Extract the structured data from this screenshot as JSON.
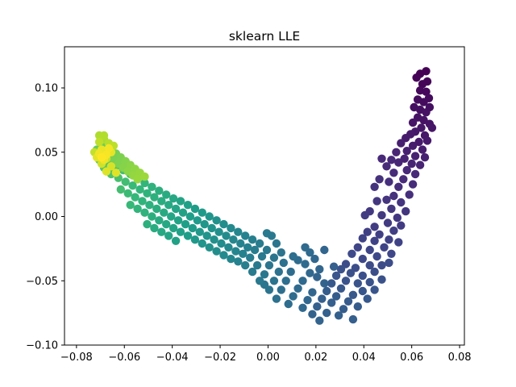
{
  "chart_data": {
    "type": "scatter",
    "title": "sklearn LLE",
    "xlabel": "",
    "ylabel": "",
    "xlim": [
      -0.085,
      0.082
    ],
    "ylim": [
      -0.1,
      0.132
    ],
    "x_ticks": [
      -0.08,
      -0.06,
      -0.04,
      -0.02,
      0.0,
      0.02,
      0.04,
      0.06,
      0.08
    ],
    "x_tick_labels": [
      "−0.08",
      "−0.06",
      "−0.04",
      "−0.02",
      "0.00",
      "0.02",
      "0.04",
      "0.06",
      "0.08"
    ],
    "y_ticks": [
      -0.1,
      -0.05,
      0.0,
      0.05,
      0.1
    ],
    "y_tick_labels": [
      "−0.10",
      "−0.05",
      "0.00",
      "0.05",
      "0.10"
    ],
    "grid": false,
    "legend": "none",
    "colormap": "viridis",
    "color_value_range": [
      0,
      1
    ],
    "points": [
      [
        0.0635,
        0.111,
        0.0
      ],
      [
        0.066,
        0.113,
        0.0
      ],
      [
        0.062,
        0.108,
        0.005
      ],
      [
        0.0645,
        0.103,
        0.01
      ],
      [
        0.0665,
        0.105,
        0.01
      ],
      [
        0.0635,
        0.098,
        0.02
      ],
      [
        0.066,
        0.097,
        0.02
      ],
      [
        0.0625,
        0.091,
        0.03
      ],
      [
        0.065,
        0.089,
        0.03
      ],
      [
        0.0672,
        0.092,
        0.03
      ],
      [
        0.061,
        0.085,
        0.04
      ],
      [
        0.0635,
        0.083,
        0.04
      ],
      [
        0.066,
        0.081,
        0.045
      ],
      [
        0.0675,
        0.085,
        0.04
      ],
      [
        0.0625,
        0.077,
        0.05
      ],
      [
        0.065,
        0.075,
        0.05
      ],
      [
        0.0675,
        0.072,
        0.055
      ],
      [
        0.0605,
        0.073,
        0.055
      ],
      [
        0.064,
        0.069,
        0.06
      ],
      [
        0.0685,
        0.069,
        0.06
      ],
      [
        0.0615,
        0.066,
        0.065
      ],
      [
        0.0655,
        0.063,
        0.065
      ],
      [
        0.0595,
        0.064,
        0.07
      ],
      [
        0.063,
        0.058,
        0.07
      ],
      [
        0.0665,
        0.059,
        0.07
      ],
      [
        0.0575,
        0.061,
        0.075
      ],
      [
        0.0605,
        0.055,
        0.08
      ],
      [
        0.0645,
        0.052,
        0.08
      ],
      [
        0.058,
        0.051,
        0.085
      ],
      [
        0.0615,
        0.047,
        0.09
      ],
      [
        0.0655,
        0.046,
        0.09
      ],
      [
        0.0555,
        0.057,
        0.085
      ],
      [
        0.057,
        0.045,
        0.095
      ],
      [
        0.06,
        0.041,
        0.1
      ],
      [
        0.0635,
        0.04,
        0.1
      ],
      [
        0.0535,
        0.05,
        0.1
      ],
      [
        0.0545,
        0.042,
        0.105
      ],
      [
        0.058,
        0.036,
        0.11
      ],
      [
        0.0515,
        0.044,
        0.11
      ],
      [
        0.0615,
        0.033,
        0.115
      ],
      [
        0.0565,
        0.029,
        0.12
      ],
      [
        0.0525,
        0.034,
        0.12
      ],
      [
        0.0495,
        0.039,
        0.12
      ],
      [
        0.0605,
        0.025,
        0.125
      ],
      [
        0.0545,
        0.023,
        0.13
      ],
      [
        0.0475,
        0.045,
        0.115
      ],
      [
        0.0505,
        0.027,
        0.135
      ],
      [
        0.059,
        0.017,
        0.135
      ],
      [
        0.0525,
        0.016,
        0.14
      ],
      [
        0.0465,
        0.029,
        0.14
      ],
      [
        0.0445,
        0.023,
        0.145
      ],
      [
        0.0555,
        0.011,
        0.15
      ],
      [
        0.0495,
        0.013,
        0.15
      ],
      [
        0.0575,
        0.004,
        0.155
      ],
      [
        0.0515,
        0.006,
        0.16
      ],
      [
        0.0455,
        0.012,
        0.16
      ],
      [
        0.054,
        -0.001,
        0.165
      ],
      [
        0.0475,
        0.001,
        0.17
      ],
      [
        0.0425,
        0.004,
        0.17
      ],
      [
        0.05,
        -0.005,
        0.175
      ],
      [
        0.0555,
        -0.007,
        0.175
      ],
      [
        0.0445,
        -0.008,
        0.18
      ],
      [
        0.0405,
        0.001,
        0.18
      ],
      [
        0.0525,
        -0.011,
        0.185
      ],
      [
        0.0465,
        -0.014,
        0.19
      ],
      [
        0.0415,
        -0.012,
        0.19
      ],
      [
        0.0505,
        -0.018,
        0.195
      ],
      [
        0.0445,
        -0.019,
        0.2
      ],
      [
        0.0395,
        -0.017,
        0.2
      ],
      [
        0.0545,
        -0.02,
        0.2
      ],
      [
        0.0485,
        -0.024,
        0.205
      ],
      [
        0.0425,
        -0.026,
        0.21
      ],
      [
        0.0375,
        -0.024,
        0.21
      ],
      [
        0.0515,
        -0.029,
        0.215
      ],
      [
        0.0455,
        -0.031,
        0.22
      ],
      [
        0.0395,
        -0.033,
        0.22
      ],
      [
        0.035,
        -0.029,
        0.225
      ],
      [
        0.0475,
        -0.038,
        0.23
      ],
      [
        0.0425,
        -0.038,
        0.23
      ],
      [
        0.0365,
        -0.04,
        0.235
      ],
      [
        0.0325,
        -0.037,
        0.235
      ],
      [
        0.0445,
        -0.043,
        0.24
      ],
      [
        0.0505,
        -0.036,
        0.235
      ],
      [
        0.0395,
        -0.046,
        0.245
      ],
      [
        0.0345,
        -0.044,
        0.25
      ],
      [
        0.0305,
        -0.041,
        0.25
      ],
      [
        0.0475,
        -0.049,
        0.25
      ],
      [
        0.0425,
        -0.051,
        0.255
      ],
      [
        0.0375,
        -0.052,
        0.26
      ],
      [
        0.0325,
        -0.05,
        0.26
      ],
      [
        0.0285,
        -0.046,
        0.265
      ],
      [
        0.0445,
        -0.057,
        0.265
      ],
      [
        0.0395,
        -0.058,
        0.27
      ],
      [
        0.0355,
        -0.061,
        0.275
      ],
      [
        0.0305,
        -0.056,
        0.275
      ],
      [
        0.0265,
        -0.052,
        0.28
      ],
      [
        0.0415,
        -0.064,
        0.28
      ],
      [
        0.0335,
        -0.066,
        0.285
      ],
      [
        0.0285,
        -0.062,
        0.29
      ],
      [
        0.0245,
        -0.058,
        0.29
      ],
      [
        0.0375,
        -0.07,
        0.29
      ],
      [
        0.0315,
        -0.072,
        0.295
      ],
      [
        0.0265,
        -0.067,
        0.3
      ],
      [
        0.0225,
        -0.064,
        0.3
      ],
      [
        0.0355,
        -0.08,
        0.3
      ],
      [
        0.0205,
        -0.07,
        0.31
      ],
      [
        0.0245,
        -0.075,
        0.31
      ],
      [
        0.0295,
        -0.077,
        0.305
      ],
      [
        0.0185,
        -0.076,
        0.315
      ],
      [
        0.0215,
        -0.081,
        0.32
      ],
      [
        0.0235,
        -0.052,
        0.315
      ],
      [
        0.0205,
        -0.047,
        0.32
      ],
      [
        0.0185,
        -0.059,
        0.325
      ],
      [
        0.0165,
        -0.065,
        0.33
      ],
      [
        0.0145,
        -0.071,
        0.335
      ],
      [
        0.0215,
        -0.041,
        0.325
      ],
      [
        0.0175,
        -0.044,
        0.335
      ],
      [
        0.0145,
        -0.05,
        0.34
      ],
      [
        0.0125,
        -0.056,
        0.345
      ],
      [
        0.0105,
        -0.062,
        0.35
      ],
      [
        0.0085,
        -0.068,
        0.355
      ],
      [
        0.0155,
        -0.037,
        0.345
      ],
      [
        0.0125,
        -0.034,
        0.35
      ],
      [
        0.0095,
        -0.043,
        0.355
      ],
      [
        0.0075,
        -0.05,
        0.36
      ],
      [
        0.0055,
        -0.057,
        0.365
      ],
      [
        0.0035,
        -0.064,
        0.37
      ],
      [
        0.0105,
        -0.031,
        0.36
      ],
      [
        0.0065,
        -0.036,
        0.37
      ],
      [
        0.0045,
        -0.043,
        0.375
      ],
      [
        0.0025,
        -0.05,
        0.38
      ],
      [
        0.0005,
        -0.057,
        0.385
      ],
      [
        -0.0015,
        -0.053,
        0.39
      ],
      [
        0.0055,
        -0.028,
        0.38
      ],
      [
        0.0025,
        -0.032,
        0.385
      ],
      [
        0.0195,
        -0.033,
        0.33
      ],
      [
        0.0235,
        -0.026,
        0.325
      ],
      [
        0.0175,
        -0.028,
        0.34
      ],
      [
        0.0155,
        -0.024,
        0.345
      ],
      [
        0.0275,
        -0.039,
        0.3
      ],
      [
        0.0005,
        -0.038,
        0.395
      ],
      [
        -0.0015,
        -0.045,
        0.4
      ],
      [
        -0.0035,
        -0.05,
        0.405
      ],
      [
        -0.0005,
        -0.026,
        0.4
      ],
      [
        -0.0025,
        -0.031,
        0.405
      ],
      [
        -0.0045,
        -0.038,
        0.41
      ],
      [
        -0.0065,
        -0.043,
        0.415
      ],
      [
        -0.0035,
        -0.021,
        0.415
      ],
      [
        -0.0055,
        -0.026,
        0.42
      ],
      [
        -0.0075,
        -0.032,
        0.425
      ],
      [
        -0.0095,
        -0.038,
        0.43
      ],
      [
        -0.0065,
        -0.018,
        0.43
      ],
      [
        -0.0085,
        -0.024,
        0.435
      ],
      [
        -0.0105,
        -0.029,
        0.44
      ],
      [
        -0.0125,
        -0.035,
        0.445
      ],
      [
        -0.0005,
        -0.013,
        0.41
      ],
      [
        0.0035,
        -0.021,
        0.395
      ],
      [
        0.0015,
        -0.015,
        0.4
      ],
      [
        -0.0095,
        -0.015,
        0.445
      ],
      [
        -0.0115,
        -0.021,
        0.45
      ],
      [
        -0.0135,
        -0.027,
        0.455
      ],
      [
        -0.0155,
        -0.033,
        0.46
      ],
      [
        -0.0125,
        -0.012,
        0.46
      ],
      [
        -0.0145,
        -0.018,
        0.465
      ],
      [
        -0.0165,
        -0.024,
        0.47
      ],
      [
        -0.0185,
        -0.03,
        0.475
      ],
      [
        -0.0155,
        -0.009,
        0.475
      ],
      [
        -0.0175,
        -0.015,
        0.48
      ],
      [
        -0.0195,
        -0.021,
        0.485
      ],
      [
        -0.0215,
        -0.027,
        0.49
      ],
      [
        -0.0185,
        -0.006,
        0.49
      ],
      [
        -0.0205,
        -0.012,
        0.495
      ],
      [
        -0.0225,
        -0.018,
        0.5
      ],
      [
        -0.0245,
        -0.024,
        0.505
      ],
      [
        -0.0215,
        -0.003,
        0.505
      ],
      [
        -0.0235,
        -0.009,
        0.51
      ],
      [
        -0.0255,
        -0.015,
        0.515
      ],
      [
        -0.0275,
        -0.021,
        0.52
      ],
      [
        -0.0245,
        0.0,
        0.52
      ],
      [
        -0.0265,
        -0.006,
        0.525
      ],
      [
        -0.0285,
        -0.012,
        0.53
      ],
      [
        -0.0305,
        -0.018,
        0.535
      ],
      [
        -0.0275,
        0.003,
        0.535
      ],
      [
        -0.0295,
        -0.003,
        0.54
      ],
      [
        -0.0315,
        -0.009,
        0.545
      ],
      [
        -0.0335,
        -0.015,
        0.55
      ],
      [
        -0.0305,
        0.006,
        0.55
      ],
      [
        -0.0325,
        0.0,
        0.555
      ],
      [
        -0.0345,
        -0.006,
        0.56
      ],
      [
        -0.0365,
        -0.012,
        0.565
      ],
      [
        -0.0385,
        -0.019,
        0.57
      ],
      [
        -0.0335,
        0.009,
        0.565
      ],
      [
        -0.0355,
        0.003,
        0.57
      ],
      [
        -0.0375,
        -0.003,
        0.575
      ],
      [
        -0.0395,
        -0.009,
        0.58
      ],
      [
        -0.0415,
        -0.015,
        0.585
      ],
      [
        -0.0365,
        0.012,
        0.58
      ],
      [
        -0.0385,
        0.006,
        0.585
      ],
      [
        -0.0405,
        0.0,
        0.59
      ],
      [
        -0.0425,
        -0.006,
        0.595
      ],
      [
        -0.0445,
        -0.012,
        0.6
      ],
      [
        -0.0395,
        0.014,
        0.595
      ],
      [
        -0.0415,
        0.009,
        0.6
      ],
      [
        -0.0435,
        0.003,
        0.605
      ],
      [
        -0.0455,
        -0.003,
        0.61
      ],
      [
        -0.0475,
        -0.009,
        0.615
      ],
      [
        -0.0425,
        0.017,
        0.61
      ],
      [
        -0.0445,
        0.012,
        0.615
      ],
      [
        -0.0465,
        0.006,
        0.62
      ],
      [
        -0.0485,
        0.0,
        0.625
      ],
      [
        -0.0505,
        -0.006,
        0.63
      ],
      [
        -0.0455,
        0.02,
        0.625
      ],
      [
        -0.0475,
        0.015,
        0.63
      ],
      [
        -0.0495,
        0.009,
        0.635
      ],
      [
        -0.0515,
        0.003,
        0.64
      ],
      [
        -0.0485,
        0.023,
        0.64
      ],
      [
        -0.0505,
        0.018,
        0.645
      ],
      [
        -0.0525,
        0.012,
        0.65
      ],
      [
        -0.0545,
        0.006,
        0.655
      ],
      [
        -0.0515,
        0.026,
        0.655
      ],
      [
        -0.0535,
        0.021,
        0.66
      ],
      [
        -0.0555,
        0.015,
        0.665
      ],
      [
        -0.0575,
        0.009,
        0.67
      ],
      [
        -0.0545,
        0.029,
        0.67
      ],
      [
        -0.0565,
        0.024,
        0.675
      ],
      [
        -0.0585,
        0.018,
        0.68
      ],
      [
        -0.0575,
        0.033,
        0.685
      ],
      [
        -0.0595,
        0.027,
        0.69
      ],
      [
        -0.0615,
        0.021,
        0.695
      ],
      [
        -0.0605,
        0.036,
        0.7
      ],
      [
        -0.0625,
        0.03,
        0.705
      ],
      [
        -0.0635,
        0.039,
        0.715
      ],
      [
        -0.0655,
        0.033,
        0.72
      ],
      [
        -0.0665,
        0.043,
        0.73
      ],
      [
        -0.0685,
        0.038,
        0.735
      ],
      [
        -0.0705,
        0.044,
        0.745
      ],
      [
        -0.0695,
        0.048,
        0.75
      ],
      [
        -0.0675,
        0.05,
        0.76
      ],
      [
        -0.0715,
        0.052,
        0.765
      ],
      [
        -0.0695,
        0.055,
        0.775
      ],
      [
        -0.0655,
        0.052,
        0.78
      ],
      [
        -0.0665,
        0.047,
        0.785
      ],
      [
        -0.0635,
        0.049,
        0.79
      ],
      [
        -0.0645,
        0.044,
        0.795
      ],
      [
        -0.0615,
        0.046,
        0.8
      ],
      [
        -0.0625,
        0.041,
        0.805
      ],
      [
        -0.0595,
        0.043,
        0.81
      ],
      [
        -0.0605,
        0.038,
        0.815
      ],
      [
        -0.0575,
        0.04,
        0.82
      ],
      [
        -0.0585,
        0.035,
        0.825
      ],
      [
        -0.0555,
        0.037,
        0.83
      ],
      [
        -0.0565,
        0.032,
        0.835
      ],
      [
        -0.0535,
        0.034,
        0.84
      ],
      [
        -0.0545,
        0.029,
        0.845
      ],
      [
        -0.0515,
        0.031,
        0.85
      ],
      [
        -0.0685,
        0.06,
        0.87
      ],
      [
        -0.0705,
        0.063,
        0.88
      ],
      [
        -0.0685,
        0.063,
        0.885
      ],
      [
        -0.0665,
        0.057,
        0.89
      ],
      [
        -0.0645,
        0.055,
        0.9
      ],
      [
        -0.0705,
        0.058,
        0.905
      ],
      [
        -0.0725,
        0.05,
        0.91
      ],
      [
        -0.0675,
        0.045,
        0.92
      ],
      [
        -0.0695,
        0.041,
        0.93
      ],
      [
        -0.0655,
        0.039,
        0.94
      ],
      [
        -0.0675,
        0.035,
        0.95
      ],
      [
        -0.0635,
        0.034,
        0.955
      ],
      [
        -0.0715,
        0.046,
        0.96
      ],
      [
        -0.0655,
        0.05,
        0.965
      ],
      [
        -0.0695,
        0.052,
        0.97
      ],
      [
        -0.0685,
        0.044,
        0.975
      ],
      [
        -0.0705,
        0.049,
        0.98
      ],
      [
        -0.0665,
        0.053,
        0.985
      ],
      [
        -0.0675,
        0.048,
        0.99
      ],
      [
        -0.0695,
        0.046,
        1.0
      ]
    ]
  }
}
